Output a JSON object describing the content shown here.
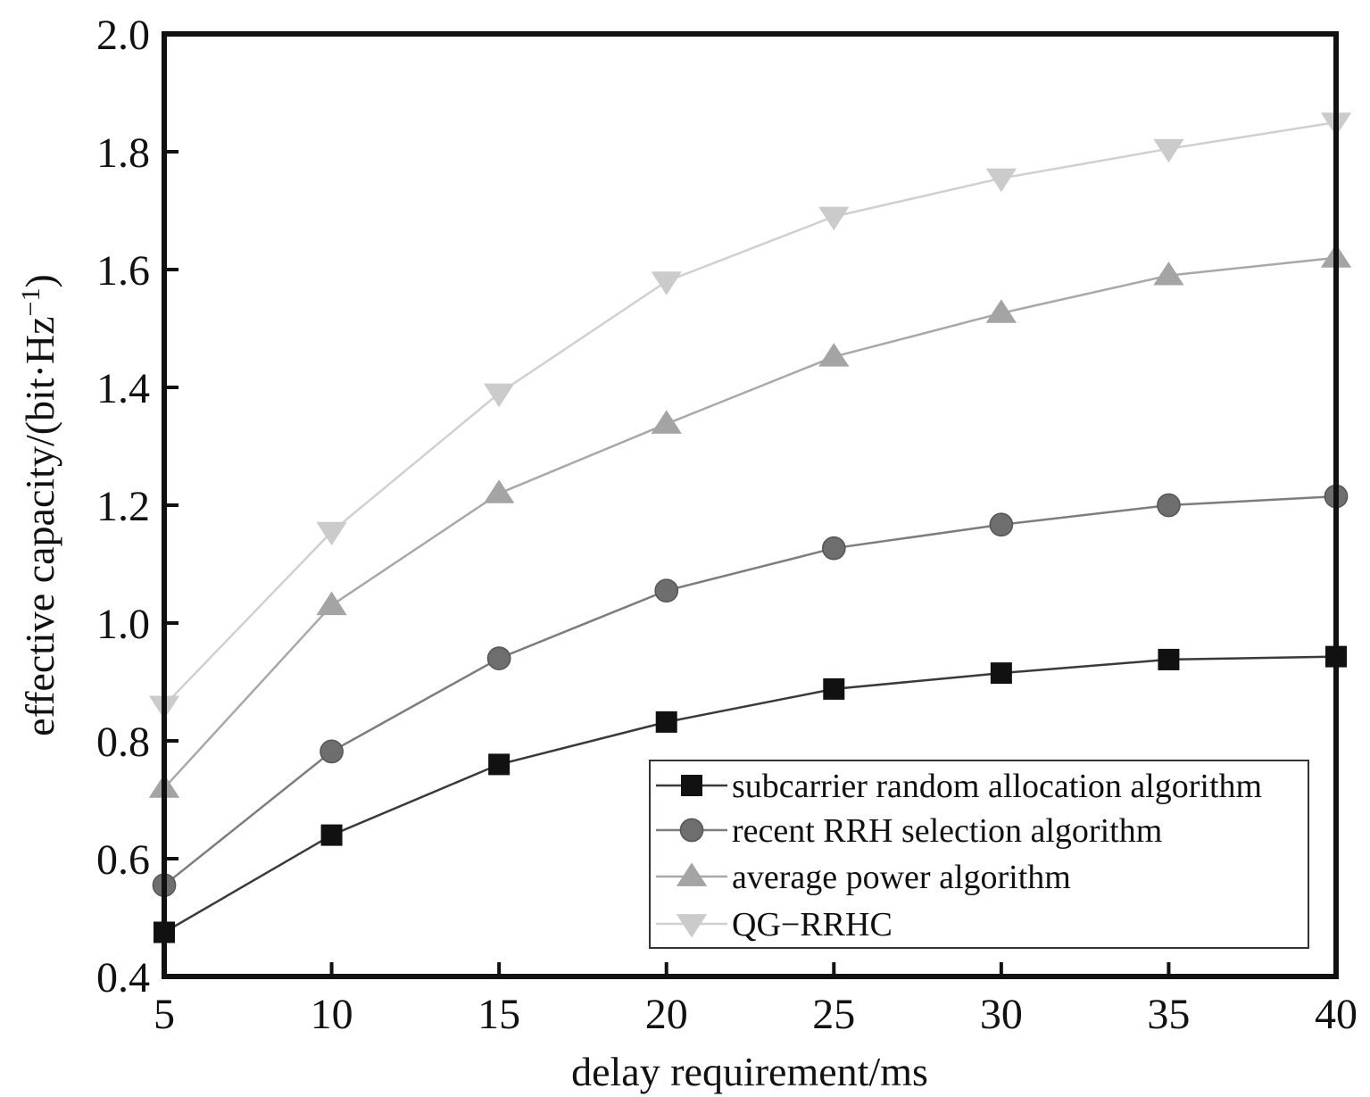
{
  "chart_data": {
    "type": "line",
    "title": "",
    "xlabel": "delay requirement/ms",
    "ylabel_main": "effective capacity/(bit·Hz",
    "ylabel_sup": "−1",
    "ylabel_close": ")",
    "x": [
      5,
      10,
      15,
      20,
      25,
      30,
      35,
      40
    ],
    "xlim": [
      5,
      40
    ],
    "ylim": [
      0.4,
      2.0
    ],
    "xticks": [
      "5",
      "10",
      "15",
      "20",
      "25",
      "30",
      "35",
      "40"
    ],
    "yticks": [
      "0.4",
      "0.6",
      "0.8",
      "1.0",
      "1.2",
      "1.4",
      "1.6",
      "1.8",
      "2.0"
    ],
    "xtick_values": [
      5,
      10,
      15,
      20,
      25,
      30,
      35,
      40
    ],
    "ytick_values": [
      0.4,
      0.6,
      0.8,
      1.0,
      1.2,
      1.4,
      1.6,
      1.8,
      2.0
    ],
    "grid": false,
    "legend_position": "bottom-right",
    "series": [
      {
        "name": "subcarrier random allocation algorithm",
        "marker": "square",
        "line_color": "#3a3a3a",
        "marker_color": "#111111",
        "values": [
          0.475,
          0.64,
          0.76,
          0.832,
          0.888,
          0.915,
          0.938,
          0.943
        ]
      },
      {
        "name": "recent RRH selection algorithm",
        "marker": "circle",
        "line_color": "#7d7d7d",
        "marker_color": "#6e6e6e",
        "values": [
          0.555,
          0.782,
          0.94,
          1.055,
          1.127,
          1.167,
          1.2,
          1.215
        ]
      },
      {
        "name": "average power algorithm",
        "marker": "triangle-up",
        "line_color": "#a8a8a8",
        "marker_color": "#a4a4a4",
        "values": [
          0.72,
          1.03,
          1.22,
          1.338,
          1.452,
          1.526,
          1.59,
          1.62
        ]
      },
      {
        "name": "QG−RRHC",
        "marker": "triangle-down",
        "line_color": "#d0d0d0",
        "marker_color": "#cbcbcb",
        "values": [
          0.86,
          1.155,
          1.39,
          1.58,
          1.69,
          1.755,
          1.805,
          1.85
        ]
      }
    ]
  }
}
